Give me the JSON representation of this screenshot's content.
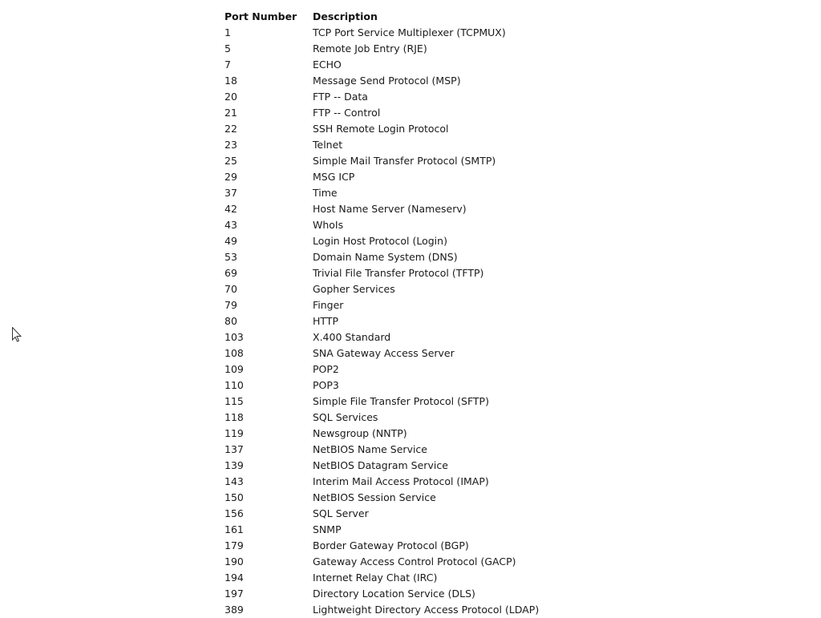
{
  "table": {
    "headers": {
      "port": "Port Number",
      "description": "Description"
    },
    "rows": [
      {
        "port": "1",
        "description": "TCP Port Service Multiplexer (TCPMUX)"
      },
      {
        "port": "5",
        "description": "Remote Job Entry (RJE)"
      },
      {
        "port": "7",
        "description": "ECHO"
      },
      {
        "port": "18",
        "description": "Message Send Protocol (MSP)"
      },
      {
        "port": "20",
        "description": "FTP -- Data"
      },
      {
        "port": "21",
        "description": "FTP -- Control"
      },
      {
        "port": "22",
        "description": "SSH Remote Login Protocol"
      },
      {
        "port": "23",
        "description": "Telnet"
      },
      {
        "port": "25",
        "description": "Simple Mail Transfer Protocol (SMTP)"
      },
      {
        "port": "29",
        "description": "MSG ICP"
      },
      {
        "port": "37",
        "description": "Time"
      },
      {
        "port": "42",
        "description": "Host Name Server (Nameserv)"
      },
      {
        "port": "43",
        "description": "WhoIs"
      },
      {
        "port": "49",
        "description": "Login Host Protocol (Login)"
      },
      {
        "port": "53",
        "description": "Domain Name System (DNS)"
      },
      {
        "port": "69",
        "description": "Trivial File Transfer Protocol (TFTP)"
      },
      {
        "port": "70",
        "description": "Gopher Services"
      },
      {
        "port": "79",
        "description": "Finger"
      },
      {
        "port": "80",
        "description": "HTTP"
      },
      {
        "port": "103",
        "description": "X.400 Standard"
      },
      {
        "port": "108",
        "description": "SNA Gateway Access Server"
      },
      {
        "port": "109",
        "description": "POP2"
      },
      {
        "port": "110",
        "description": "POP3"
      },
      {
        "port": "115",
        "description": "Simple File Transfer Protocol (SFTP)"
      },
      {
        "port": "118",
        "description": "SQL Services"
      },
      {
        "port": "119",
        "description": "Newsgroup (NNTP)"
      },
      {
        "port": "137",
        "description": "NetBIOS Name Service"
      },
      {
        "port": "139",
        "description": "NetBIOS Datagram Service"
      },
      {
        "port": "143",
        "description": "Interim Mail Access Protocol (IMAP)"
      },
      {
        "port": "150",
        "description": "NetBIOS Session Service"
      },
      {
        "port": "156",
        "description": "SQL Server"
      },
      {
        "port": "161",
        "description": "SNMP"
      },
      {
        "port": "179",
        "description": "Border Gateway Protocol (BGP)"
      },
      {
        "port": "190",
        "description": "Gateway Access Control Protocol (GACP)"
      },
      {
        "port": "194",
        "description": "Internet Relay Chat (IRC)"
      },
      {
        "port": "197",
        "description": "Directory Location Service (DLS)"
      },
      {
        "port": "389",
        "description": "Lightweight Directory Access Protocol (LDAP)"
      }
    ]
  },
  "cursor": {
    "icon": "mouse-pointer-icon"
  }
}
